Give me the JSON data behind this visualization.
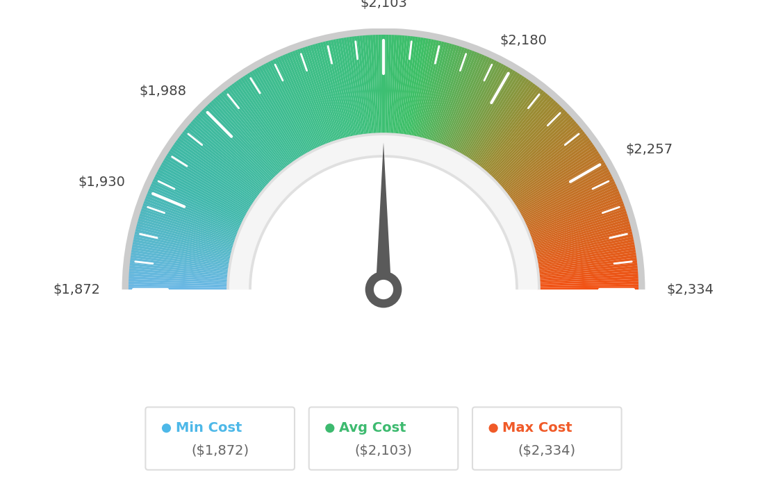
{
  "min_cost": 1872,
  "avg_cost": 2103,
  "max_cost": 2334,
  "tick_labels": [
    "$1,872",
    "$1,930",
    "$1,988",
    "$2,103",
    "$2,180",
    "$2,257",
    "$2,334"
  ],
  "tick_values": [
    1872,
    1930,
    1988,
    2103,
    2180,
    2257,
    2334
  ],
  "legend": [
    {
      "label": "Min Cost",
      "value": "($1,872)",
      "color": "#4db8e8"
    },
    {
      "label": "Avg Cost",
      "value": "($2,103)",
      "color": "#3dba6f"
    },
    {
      "label": "Max Cost",
      "value": "($2,334)",
      "color": "#f05a28"
    }
  ],
  "needle_value": 2103,
  "background_color": "#ffffff",
  "needle_color": "#5a5a5a",
  "outer_ring_color": "#cccccc",
  "inner_bezel_color": "#e8e8e8",
  "inner_bezel_color2": "#f0f0f0"
}
